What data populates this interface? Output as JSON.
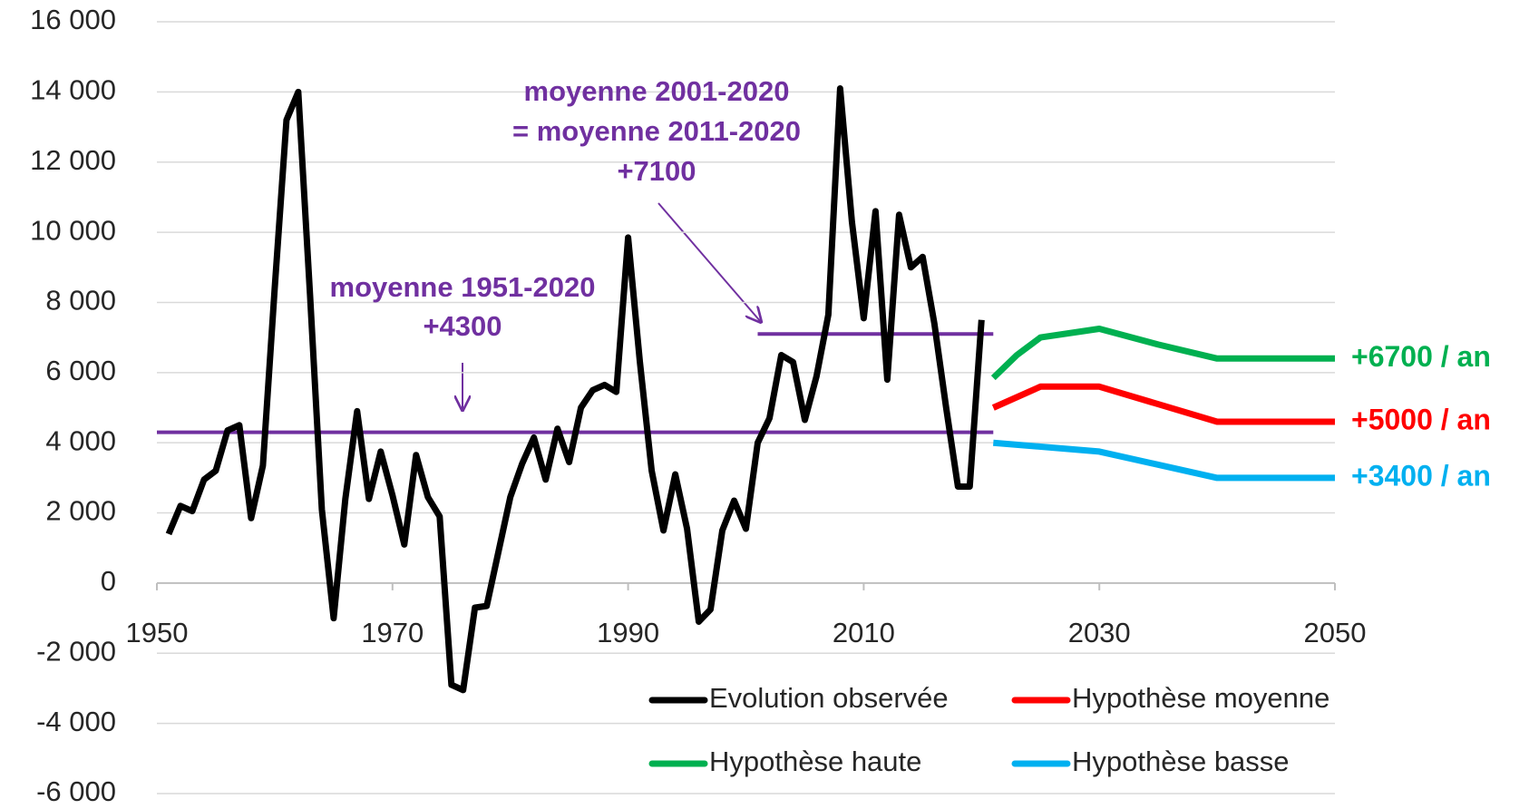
{
  "chart_data": {
    "type": "line",
    "xlim": [
      1950,
      2050
    ],
    "xticks": [
      1950,
      1970,
      1990,
      2010,
      2030,
      2050
    ],
    "ylim": [
      -6000,
      16000
    ],
    "yticks": [
      {
        "value": -6000,
        "label": "-6 000"
      },
      {
        "value": -4000,
        "label": "-4 000"
      },
      {
        "value": -2000,
        "label": "-2 000"
      },
      0,
      {
        "value": 2000,
        "label": "2 000"
      },
      {
        "value": 4000,
        "label": "4 000"
      },
      {
        "value": 6000,
        "label": "6 000"
      },
      {
        "value": 8000,
        "label": "8 000"
      },
      {
        "value": 10000,
        "label": "10 000"
      },
      {
        "value": 12000,
        "label": "12 000"
      },
      {
        "value": 14000,
        "label": "14 000"
      },
      {
        "value": 16000,
        "label": "16 000"
      }
    ],
    "grid": true,
    "legend": "lower right",
    "series": [
      {
        "name": "Evolution observée",
        "color": "#000000",
        "x": [
          1951,
          1952,
          1953,
          1954,
          1955,
          1956,
          1957,
          1958,
          1959,
          1960,
          1961,
          1962,
          1963,
          1964,
          1965,
          1966,
          1967,
          1968,
          1969,
          1970,
          1971,
          1972,
          1973,
          1974,
          1975,
          1976,
          1977,
          1978,
          1979,
          1980,
          1981,
          1982,
          1983,
          1984,
          1985,
          1986,
          1987,
          1988,
          1989,
          1990,
          1991,
          1992,
          1993,
          1994,
          1995,
          1996,
          1997,
          1998,
          1999,
          2000,
          2001,
          2002,
          2003,
          2004,
          2005,
          2006,
          2007,
          2008,
          2009,
          2010,
          2011,
          2012,
          2013,
          2014,
          2015,
          2016,
          2017,
          2018,
          2019,
          2020
        ],
        "values": [
          1400,
          2200,
          2050,
          2950,
          3200,
          4350,
          4500,
          1850,
          3350,
          8400,
          13200,
          14000,
          8200,
          2100,
          -1000,
          2400,
          4900,
          2400,
          3750,
          2500,
          1100,
          3650,
          2450,
          1900,
          -2900,
          -3050,
          -700,
          -650,
          900,
          2450,
          3400,
          4150,
          2950,
          4400,
          3450,
          5000,
          5500,
          5650,
          5450,
          9850,
          6300,
          3200,
          1500,
          3100,
          1550,
          -1100,
          -750,
          1500,
          2350,
          1550,
          4000,
          4700,
          6500,
          6300,
          4650,
          5900,
          7650,
          14100,
          10300,
          7550,
          10600,
          5800,
          10500,
          9000,
          9300,
          7400,
          5000,
          2750,
          2750,
          7500
        ]
      },
      {
        "name": "Hypothèse moyenne",
        "color": "#ff0000",
        "x": [
          2021,
          2025,
          2030,
          2040,
          2050
        ],
        "values": [
          5000,
          5600,
          5600,
          4600,
          4600
        ],
        "end_label": "+5000 / an"
      },
      {
        "name": "Hypothèse haute",
        "color": "#00b050",
        "x": [
          2021,
          2023,
          2025,
          2030,
          2035,
          2040,
          2050
        ],
        "values": [
          5850,
          6500,
          7000,
          7250,
          6800,
          6400,
          6400
        ],
        "end_label": "+6700 / an"
      },
      {
        "name": "Hypothèse basse",
        "color": "#00b0f0",
        "x": [
          2021,
          2030,
          2040,
          2050
        ],
        "values": [
          4000,
          3750,
          3000,
          3000
        ],
        "end_label": "+3400 / an"
      }
    ],
    "annotations": [
      {
        "text": [
          "moyenne 1951-2020",
          "+4300"
        ],
        "value": 4300,
        "x": [
          1950,
          2021
        ],
        "color": "#7030a0"
      },
      {
        "text": [
          "moyenne 2001-2020",
          "= moyenne 2011-2020",
          "+7100"
        ],
        "value": 7100,
        "x": [
          2001,
          2021
        ],
        "color": "#7030a0"
      }
    ]
  }
}
